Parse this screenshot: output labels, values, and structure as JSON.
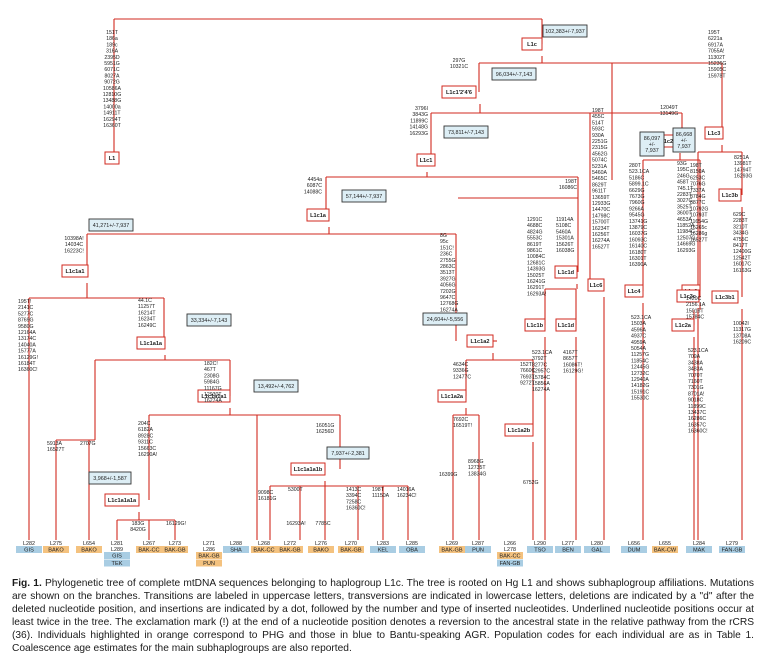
{
  "nodes": [
    {
      "id": "L1c",
      "label": "L1c"
    },
    {
      "id": "L1",
      "label": "L1"
    },
    {
      "id": "L1c1'2'4'6",
      "label": "L1c1'2'4'6"
    },
    {
      "id": "L1c1",
      "label": "L1c1"
    },
    {
      "id": "L1c1a",
      "label": "L1c1a"
    },
    {
      "id": "L1c1a1",
      "label": "L1c1a1"
    },
    {
      "id": "L1c1a1a",
      "label": "L1c1a1a"
    },
    {
      "id": "L1c1a1a1",
      "label": "L1c1a1a1"
    },
    {
      "id": "L1c1a1a1b",
      "label": "L1c1a1a1b"
    },
    {
      "id": "L1c1a1a1a",
      "label": "L1c1a1a1a"
    },
    {
      "id": "L1c1a2",
      "label": "L1c1a2"
    },
    {
      "id": "L1c1a2a",
      "label": "L1c1a2a"
    },
    {
      "id": "L1c1a2b",
      "label": "L1c1a2b"
    },
    {
      "id": "L1c1d",
      "label": "L1c1d"
    },
    {
      "id": "L1c1b",
      "label": "L1c1b"
    },
    {
      "id": "L1c1d2",
      "label": "L1c1d"
    },
    {
      "id": "L1c6",
      "label": "L1c6"
    },
    {
      "id": "L1c2'4",
      "label": "L1c2'4"
    },
    {
      "id": "L1c4",
      "label": "L1c4"
    },
    {
      "id": "L1c2",
      "label": "L1c2"
    },
    {
      "id": "L1c2a",
      "label": "L1c2a"
    },
    {
      "id": "L1c3",
      "label": "L1c3"
    },
    {
      "id": "L1c3b",
      "label": "L1c3b"
    },
    {
      "id": "L1c3c",
      "label": "L1c3c"
    },
    {
      "id": "L1c3b1",
      "label": "L1c3b1"
    }
  ],
  "ages": {
    "L1c": "102,383+/-7,937",
    "L1c1'2'4'6": "96,034+/-7,143",
    "L1c1": "73,811+/-7,143",
    "L1c1a": "57,144+/-7,937",
    "L1c1a1": "41,271+/-7,937",
    "L1c1a1a": "33,334+/-7,143",
    "L1c1a1a1": "13,492+/-4,762",
    "L1c1a1a1b": "7,937+/-2,381",
    "L1c1a1a1a": "3,968+/-1,587",
    "L1c1a2": "24,604+/-5,556",
    "L1c6": "86,097 +/- 7,937",
    "L1c3": "86,668 +/- 7,937"
  },
  "mutations": {
    "L1": [
      "151T",
      "186a",
      "189c",
      "316A",
      "2395D",
      "5951G",
      "6071C",
      "8027A",
      "9072G",
      "10586A",
      "12810G",
      "13488G",
      "14000a",
      "14911T",
      "16294T",
      "16360T"
    ],
    "L1c1'2'4'6": [
      "297G",
      "10321C"
    ],
    "L1c1": [
      "3796I",
      "3843G",
      "11899C",
      "14148G",
      "16293G"
    ],
    "L1c1a": [
      "4454a",
      "6087C",
      "14088C"
    ],
    "L1c1a1": [
      "10398A!",
      "14034C",
      "16223C!"
    ],
    "L282": [
      "195T!",
      "2141C",
      "5277C",
      "8769G",
      "9580G",
      "12164A",
      "13174C",
      "14040A",
      "15777A",
      "16129G!",
      "16184T",
      "16360C!"
    ],
    "L1c1a1a": [
      "44.1C",
      "11257T",
      "16214T",
      "16234T",
      "16249C"
    ],
    "L1c1a1a1": [
      "182C!",
      "467T",
      "2308G",
      "5984G",
      "11167G",
      "12930T",
      "16274A"
    ],
    "L275": [
      "5913A",
      "16527T"
    ],
    "L654": [
      "2707G"
    ],
    "L1c1a1a1a": [
      "204C",
      "6182A",
      "8928C",
      "9311C",
      "15663C",
      "16290A!"
    ],
    "L281": [
      "183G",
      "8420G"
    ],
    "L273": [
      "16129G!"
    ],
    "L1c1a1a1b": [
      "16051G",
      "16256D"
    ],
    "L271": [
      "9098C",
      "16181G"
    ],
    "L268": [
      "5300T"
    ],
    "L272": [
      "16293A!"
    ],
    "L276": [
      "7785C"
    ],
    "L270": [
      "1413C",
      "3394C",
      "7258C",
      "16360C!"
    ],
    "L283": [
      "198T",
      "11150A"
    ],
    "L285": [
      "14016A",
      "16234C!"
    ],
    "L1c1a2": [
      "8G",
      "95c",
      "151C!",
      "236C",
      "2755G",
      "2863C",
      "3513T",
      "3927G",
      "4056G",
      "7202G",
      "9647C",
      "12768G",
      "16274A"
    ],
    "L1c1a2a": [
      "4634C",
      "9336G",
      "12477C"
    ],
    "L269": [
      "7692C",
      "16519T!"
    ],
    "L269b": [
      "16399G"
    ],
    "L287": [
      "8968G",
      "12735T",
      "13834G"
    ],
    "L1c1a2b": [
      "152T!",
      "7660C",
      "7693T",
      "9272T"
    ],
    "L266": [
      "6752G"
    ],
    "L1c1d": [
      "198T",
      "16086C"
    ],
    "L1c1b": [
      "1291C",
      "4688C",
      "4824G",
      "5553C",
      "8619T",
      "9861C",
      "10084C",
      "12681C",
      "14393G",
      "15025T",
      "16241G",
      "16291T",
      "16293A!"
    ],
    "L290": [
      "523.1CA",
      "3792T",
      "8277C",
      "12957C",
      "15784C",
      "15856A",
      "16274A"
    ],
    "L1c1d2": [
      "11914A",
      "5108C",
      "5460A",
      "15301A",
      "15626T",
      "16038G"
    ],
    "L277": [
      "4167T",
      "8657T",
      "16086T!",
      "16129G!"
    ],
    "L1c6": [
      "198T",
      "455C",
      "514T",
      "593C",
      "930A",
      "2251G",
      "2315G",
      "4562G",
      "5074C",
      "5231A",
      "5460A",
      "5465C",
      "8629T",
      "9611T",
      "13659T",
      "12933G",
      "14470C",
      "14798C",
      "15700T",
      "16234T",
      "16256T",
      "16274A",
      "16527T"
    ],
    "L1c2'4": [
      "12049T",
      "13149G"
    ],
    "L1c4": [
      "280T",
      "523.1CA",
      "5186C",
      "5899.1C",
      "6629G",
      "7673G",
      "7960G",
      "9266A",
      "9545G",
      "13741G",
      "13879C",
      "16037G",
      "16093C",
      "16140C",
      "16180T",
      "16301T",
      "16390A"
    ],
    "L286": [
      "523.1CA",
      "1503A",
      "4596A",
      "4937C",
      "4959A",
      "5054A",
      "11257G",
      "11854C",
      "12445G",
      "12732C",
      "12940A",
      "14182G",
      "15191C",
      "15530C"
    ],
    "L1c2": [
      "198T",
      "8150A",
      "6253C",
      "7076G",
      "7337A",
      "8784G",
      "8877C",
      "10792G",
      "10793T",
      "11654G",
      "16265c",
      "16286g",
      "16527T"
    ],
    "L1c2a": [
      "1420C",
      "2156.1A",
      "15016T",
      "15784C"
    ],
    "L655": [
      "523.1CA",
      "709A",
      "3438A",
      "3483A",
      "7070T",
      "7160T",
      "7301G",
      "8701A!",
      "9018C",
      "11899C",
      "13437C",
      "16286C",
      "16357C",
      "16360C!"
    ],
    "L1c3": [
      "195T",
      "6221a",
      "6917A",
      "7055A!",
      "11302T",
      "15236G",
      "15905C",
      "15978T"
    ],
    "L1c3c": [
      "93G",
      "195C",
      "246G",
      "458T",
      "745.1T",
      "2283T",
      "3027C",
      "3525T",
      "3600T",
      "4653A",
      "11852A",
      "11984C",
      "12507G",
      "14669G",
      "16293G"
    ],
    "L1c3b": [
      "8251A",
      "13981T",
      "14794T",
      "16293G"
    ],
    "L1c3b1": [
      "629C",
      "2283T",
      "3210T",
      "3434G",
      "4755C",
      "8417T",
      "12400G",
      "12542T",
      "16017C",
      "16163G"
    ],
    "L279": [
      "10042I",
      "11317G",
      "13708A",
      "16209C"
    ]
  },
  "individuals": [
    {
      "ids": [
        "L282"
      ],
      "pop": "GIS",
      "color": "blue"
    },
    {
      "ids": [
        "L275"
      ],
      "pop": "BAKO",
      "color": "orange"
    },
    {
      "ids": [
        "L654"
      ],
      "pop": "BAKO",
      "color": "orange"
    },
    {
      "ids": [
        "L281",
        "L289"
      ],
      "pop": "GIS",
      "pop2": "TEK",
      "color": "blue"
    },
    {
      "ids": [
        "L267"
      ],
      "pop": "BAK-CC",
      "color": "orange"
    },
    {
      "ids": [
        "L273"
      ],
      "pop": "BAK-GB",
      "color": "orange"
    },
    {
      "ids": [
        "L271",
        "L286"
      ],
      "pop": "BAK-GB",
      "pop2": "PUN",
      "color": "orange"
    },
    {
      "ids": [
        "L288"
      ],
      "pop": "SHA",
      "color": "blue"
    },
    {
      "ids": [
        "L268"
      ],
      "pop": "BAK-CC",
      "color": "orange"
    },
    {
      "ids": [
        "L272"
      ],
      "pop": "BAK-GB",
      "color": "orange"
    },
    {
      "ids": [
        "L276"
      ],
      "pop": "BAKO",
      "color": "orange"
    },
    {
      "ids": [
        "L270"
      ],
      "pop": "BAK-GB",
      "color": "orange"
    },
    {
      "ids": [
        "L283"
      ],
      "pop": "KEL",
      "color": "blue"
    },
    {
      "ids": [
        "L285"
      ],
      "pop": "OBA",
      "color": "blue"
    },
    {
      "ids": [
        "L269"
      ],
      "pop": "BAK-GB",
      "color": "orange"
    },
    {
      "ids": [
        "L287"
      ],
      "pop": "PUN",
      "color": "blue"
    },
    {
      "ids": [
        "L266",
        "L278"
      ],
      "pop": "BAK-CC",
      "pop2": "FAN-GB",
      "color": "orange"
    },
    {
      "ids": [
        "L290"
      ],
      "pop": "TSO",
      "color": "blue"
    },
    {
      "ids": [
        "L277"
      ],
      "pop": "BEN",
      "color": "blue"
    },
    {
      "ids": [
        "L280"
      ],
      "pop": "GAL",
      "color": "blue"
    },
    {
      "ids": [
        "L656"
      ],
      "pop": "DUM",
      "color": "blue"
    },
    {
      "ids": [
        "L655"
      ],
      "pop": "BAK-CW",
      "color": "orange"
    },
    {
      "ids": [
        "L284"
      ],
      "pop": "MAK",
      "color": "blue"
    },
    {
      "ids": [
        "L279"
      ],
      "pop": "FAN-GB",
      "color": "blue"
    }
  ],
  "colors": {
    "tree_line": "#d22a1f",
    "orange_pop": "#f4c27f",
    "blue_pop": "#a9cde3",
    "age_box": "#ddeef5"
  },
  "caption": {
    "label": "Fig. 1.",
    "text": "Phylogenetic tree of complete mtDNA sequences belonging to haplogroup L1c. The tree is rooted on Hg L1 and shows subhaplogroup affiliations. Mutations are shown on the branches. Transitions are labeled in uppercase letters, transversions are indicated in lowercase letters, deletions are indicated by a \"d\" after the deleted nucleotide position, and insertions are indicated by a dot, followed by the number and type of inserted nucleotides. Underlined nucleotide positions occur at least twice in the tree. The exclamation mark (!) at the end of a nucleotide position denotes a reversion to the ancestral state in the relative pathway from the rCRS (36). Individuals highlighted in orange correspond to PHG and those in blue to Bantu-speaking AGR. Population codes for each individual are as in Table 1. Coalescence age estimates for the main subhaplogroups are also reported."
  }
}
